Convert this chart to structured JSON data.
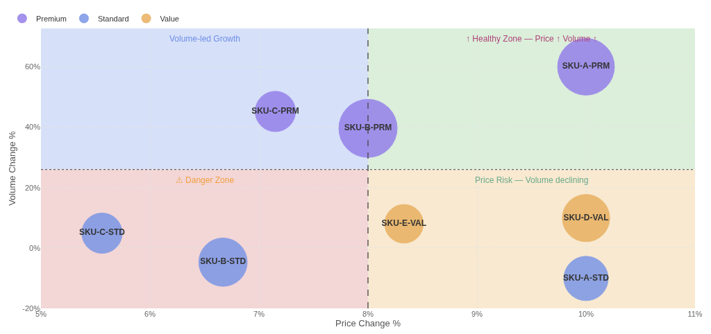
{
  "chart_data": {
    "type": "bubble",
    "xlabel": "Price Change %",
    "ylabel": "Volume Change %",
    "xlim": [
      5,
      11
    ],
    "xticks": [
      {
        "value": 5,
        "label": "5%"
      },
      {
        "value": 6,
        "label": "6%"
      },
      {
        "value": 7,
        "label": "7%"
      },
      {
        "value": 8,
        "label": "8%"
      },
      {
        "value": 9,
        "label": "9%"
      },
      {
        "value": 10,
        "label": "10%"
      },
      {
        "value": 11,
        "label": "11%"
      }
    ],
    "ylim": [
      -20,
      72.7
    ],
    "yticks": [
      {
        "value": -20,
        "label": "-20%"
      },
      {
        "value": 0,
        "label": "0%"
      },
      {
        "value": 20,
        "label": "20%"
      },
      {
        "value": 40,
        "label": "40%"
      },
      {
        "value": 60,
        "label": "60%"
      }
    ],
    "series": [
      {
        "name": "Premium",
        "color": "#9580ea",
        "x": [
          10,
          8,
          7.15
        ],
        "values": [
          60,
          39.6,
          45.2
        ],
        "sizes": [
          0.95,
          1,
          0.48
        ],
        "value_labels": [
          "SKU-A-PRM",
          "SKU-B-PRM",
          "SKU-C-PRM"
        ]
      },
      {
        "name": "Standard",
        "color": "#7b96e6",
        "x": [
          5.56,
          6.67,
          10
        ],
        "values": [
          4.9,
          -4.7,
          -10.1
        ],
        "sizes": [
          0.48,
          0.69,
          0.58
        ],
        "value_labels": [
          "SKU-C-STD",
          "SKU-B-STD",
          "SKU-A-STD"
        ]
      },
      {
        "name": "Value",
        "color": "#e8b060",
        "x": [
          8.33,
          10
        ],
        "values": [
          8,
          9.9
        ],
        "sizes": [
          0.44,
          0.66
        ],
        "value_labels": [
          "SKU-E-VAL",
          "SKU-D-VAL"
        ]
      }
    ],
    "bands": [
      {
        "axis": "x",
        "from": 5,
        "to": 8,
        "label": "Volume-led Growth",
        "color": "#d6e0f8"
      },
      {
        "axis": "x",
        "from": 8,
        "to": 11,
        "label": "↑ Healthy Zone — Price ↑ Volume ↑",
        "color": "#dbefdb"
      },
      {
        "axis": "x",
        "from": 5,
        "to": 8,
        "label": "⚠ Danger Zone",
        "color": "#f3d6d6"
      },
      {
        "axis": "x",
        "from": 8,
        "to": 11,
        "label": "Price Risk — Volume declining",
        "color": "#f8e9d0"
      }
    ],
    "ref_lines": [
      {
        "axis": "x",
        "value": 8,
        "color": "#444444",
        "line_style": "dashed"
      },
      {
        "axis": "y",
        "value": 26,
        "color": "#666666",
        "line_style": "dotted"
      }
    ],
    "grid": true,
    "legend": "top left",
    "marker": "circle"
  }
}
